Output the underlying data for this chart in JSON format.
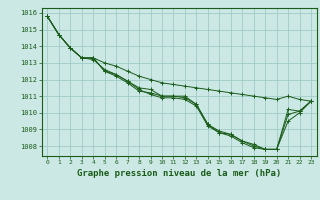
{
  "bg_color": "#cce8e4",
  "grid_color": "#a0ccc8",
  "line_color": "#1a5c1a",
  "xlabel": "Graphe pression niveau de la mer (hPa)",
  "ylim": [
    1007.4,
    1016.3
  ],
  "xlim": [
    -0.5,
    23.5
  ],
  "yticks": [
    1008,
    1009,
    1010,
    1011,
    1012,
    1013,
    1014,
    1015,
    1016
  ],
  "xticks": [
    0,
    1,
    2,
    3,
    4,
    5,
    6,
    7,
    8,
    9,
    10,
    11,
    12,
    13,
    14,
    15,
    16,
    17,
    18,
    19,
    20,
    21,
    22,
    23
  ],
  "series": [
    [
      1015.8,
      1014.7,
      1013.9,
      1013.3,
      1013.3,
      1012.5,
      1012.2,
      1011.8,
      1011.3,
      1011.2,
      1011.0,
      1011.0,
      1010.9,
      1010.5,
      1009.3,
      1008.8,
      1008.7,
      1008.3,
      1008.0,
      1007.8,
      1007.8,
      1009.9,
      1010.1,
      1010.7
    ],
    [
      1015.8,
      1014.7,
      1013.9,
      1013.3,
      1013.3,
      1012.5,
      1012.3,
      1011.9,
      1011.5,
      1011.4,
      1011.0,
      1011.0,
      1011.0,
      1010.5,
      1009.3,
      1008.9,
      1008.7,
      1008.3,
      1008.1,
      1007.8,
      1007.8,
      1010.2,
      1010.1,
      1010.7
    ],
    [
      1015.8,
      1014.7,
      1013.9,
      1013.3,
      1013.2,
      1012.6,
      1012.3,
      1011.9,
      1011.4,
      1011.1,
      1010.9,
      1010.9,
      1010.8,
      1010.4,
      1009.2,
      1008.8,
      1008.6,
      1008.2,
      1007.9,
      1007.8,
      1007.8,
      1009.5,
      1010.0,
      1010.7
    ],
    [
      1015.8,
      1014.7,
      1013.9,
      1013.3,
      1013.3,
      1013.0,
      1012.8,
      1012.5,
      1012.2,
      1012.0,
      1011.8,
      1011.7,
      1011.6,
      1011.5,
      1011.4,
      1011.3,
      1011.2,
      1011.1,
      1011.0,
      1010.9,
      1010.8,
      1011.0,
      1010.8,
      1010.7
    ]
  ]
}
